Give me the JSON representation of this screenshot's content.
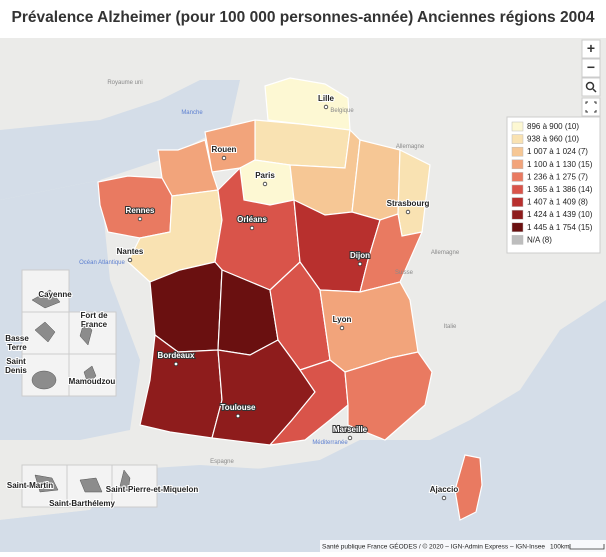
{
  "header": {
    "title": "Prévalence Alzheimer (pour 100 000 personnes-année) Anciennes régions 2004"
  },
  "legend": {
    "items": [
      {
        "label": "896 à 900 (10)",
        "color": "#fdf8d3"
      },
      {
        "label": "938 à 960 (10)",
        "color": "#f9e2b2"
      },
      {
        "label": "1 007 à 1 024 (7)",
        "color": "#f6c795"
      },
      {
        "label": "1 100 à 1 130 (15)",
        "color": "#f2a47b"
      },
      {
        "label": "1 236 à 1 275 (7)",
        "color": "#e97a61"
      },
      {
        "label": "1 365 à 1 386 (14)",
        "color": "#d9544a"
      },
      {
        "label": "1 407 à 1 409 (8)",
        "color": "#b8302e"
      },
      {
        "label": "1 424 à 1 439 (10)",
        "color": "#8e1c1c"
      },
      {
        "label": "1 445 à 1 754 (15)",
        "color": "#6a1010"
      },
      {
        "label": "N/A (8)",
        "color": "#bdbdbd"
      }
    ]
  },
  "cities": [
    "Lille",
    "Rouen",
    "Paris",
    "Strasbourg",
    "Rennes",
    "Orléans",
    "Nantes",
    "Dijon",
    "Lyon",
    "Bordeaux",
    "Toulouse",
    "Marseille",
    "Ajaccio"
  ],
  "places": [
    "Royaume uni",
    "Manche",
    "Belgique",
    "Allemagne",
    "Suisse",
    "Italie",
    "Espagne",
    "Méditerranée",
    "Océan Atlantique"
  ],
  "insets": [
    "Cayenne",
    "Fort de France",
    "Basse Terre",
    "Saint Denis",
    "Mamoudzou",
    "Saint-Martin",
    "Saint-Barthélemy",
    "Saint-Pierre-et-Miquelon"
  ],
  "controls": [
    "+",
    "−"
  ],
  "footer": {
    "attribution": "Santé publique France GÉODES / © 2020 – IGN-Admin Express – IGN-Insee",
    "scale": "100km"
  }
}
